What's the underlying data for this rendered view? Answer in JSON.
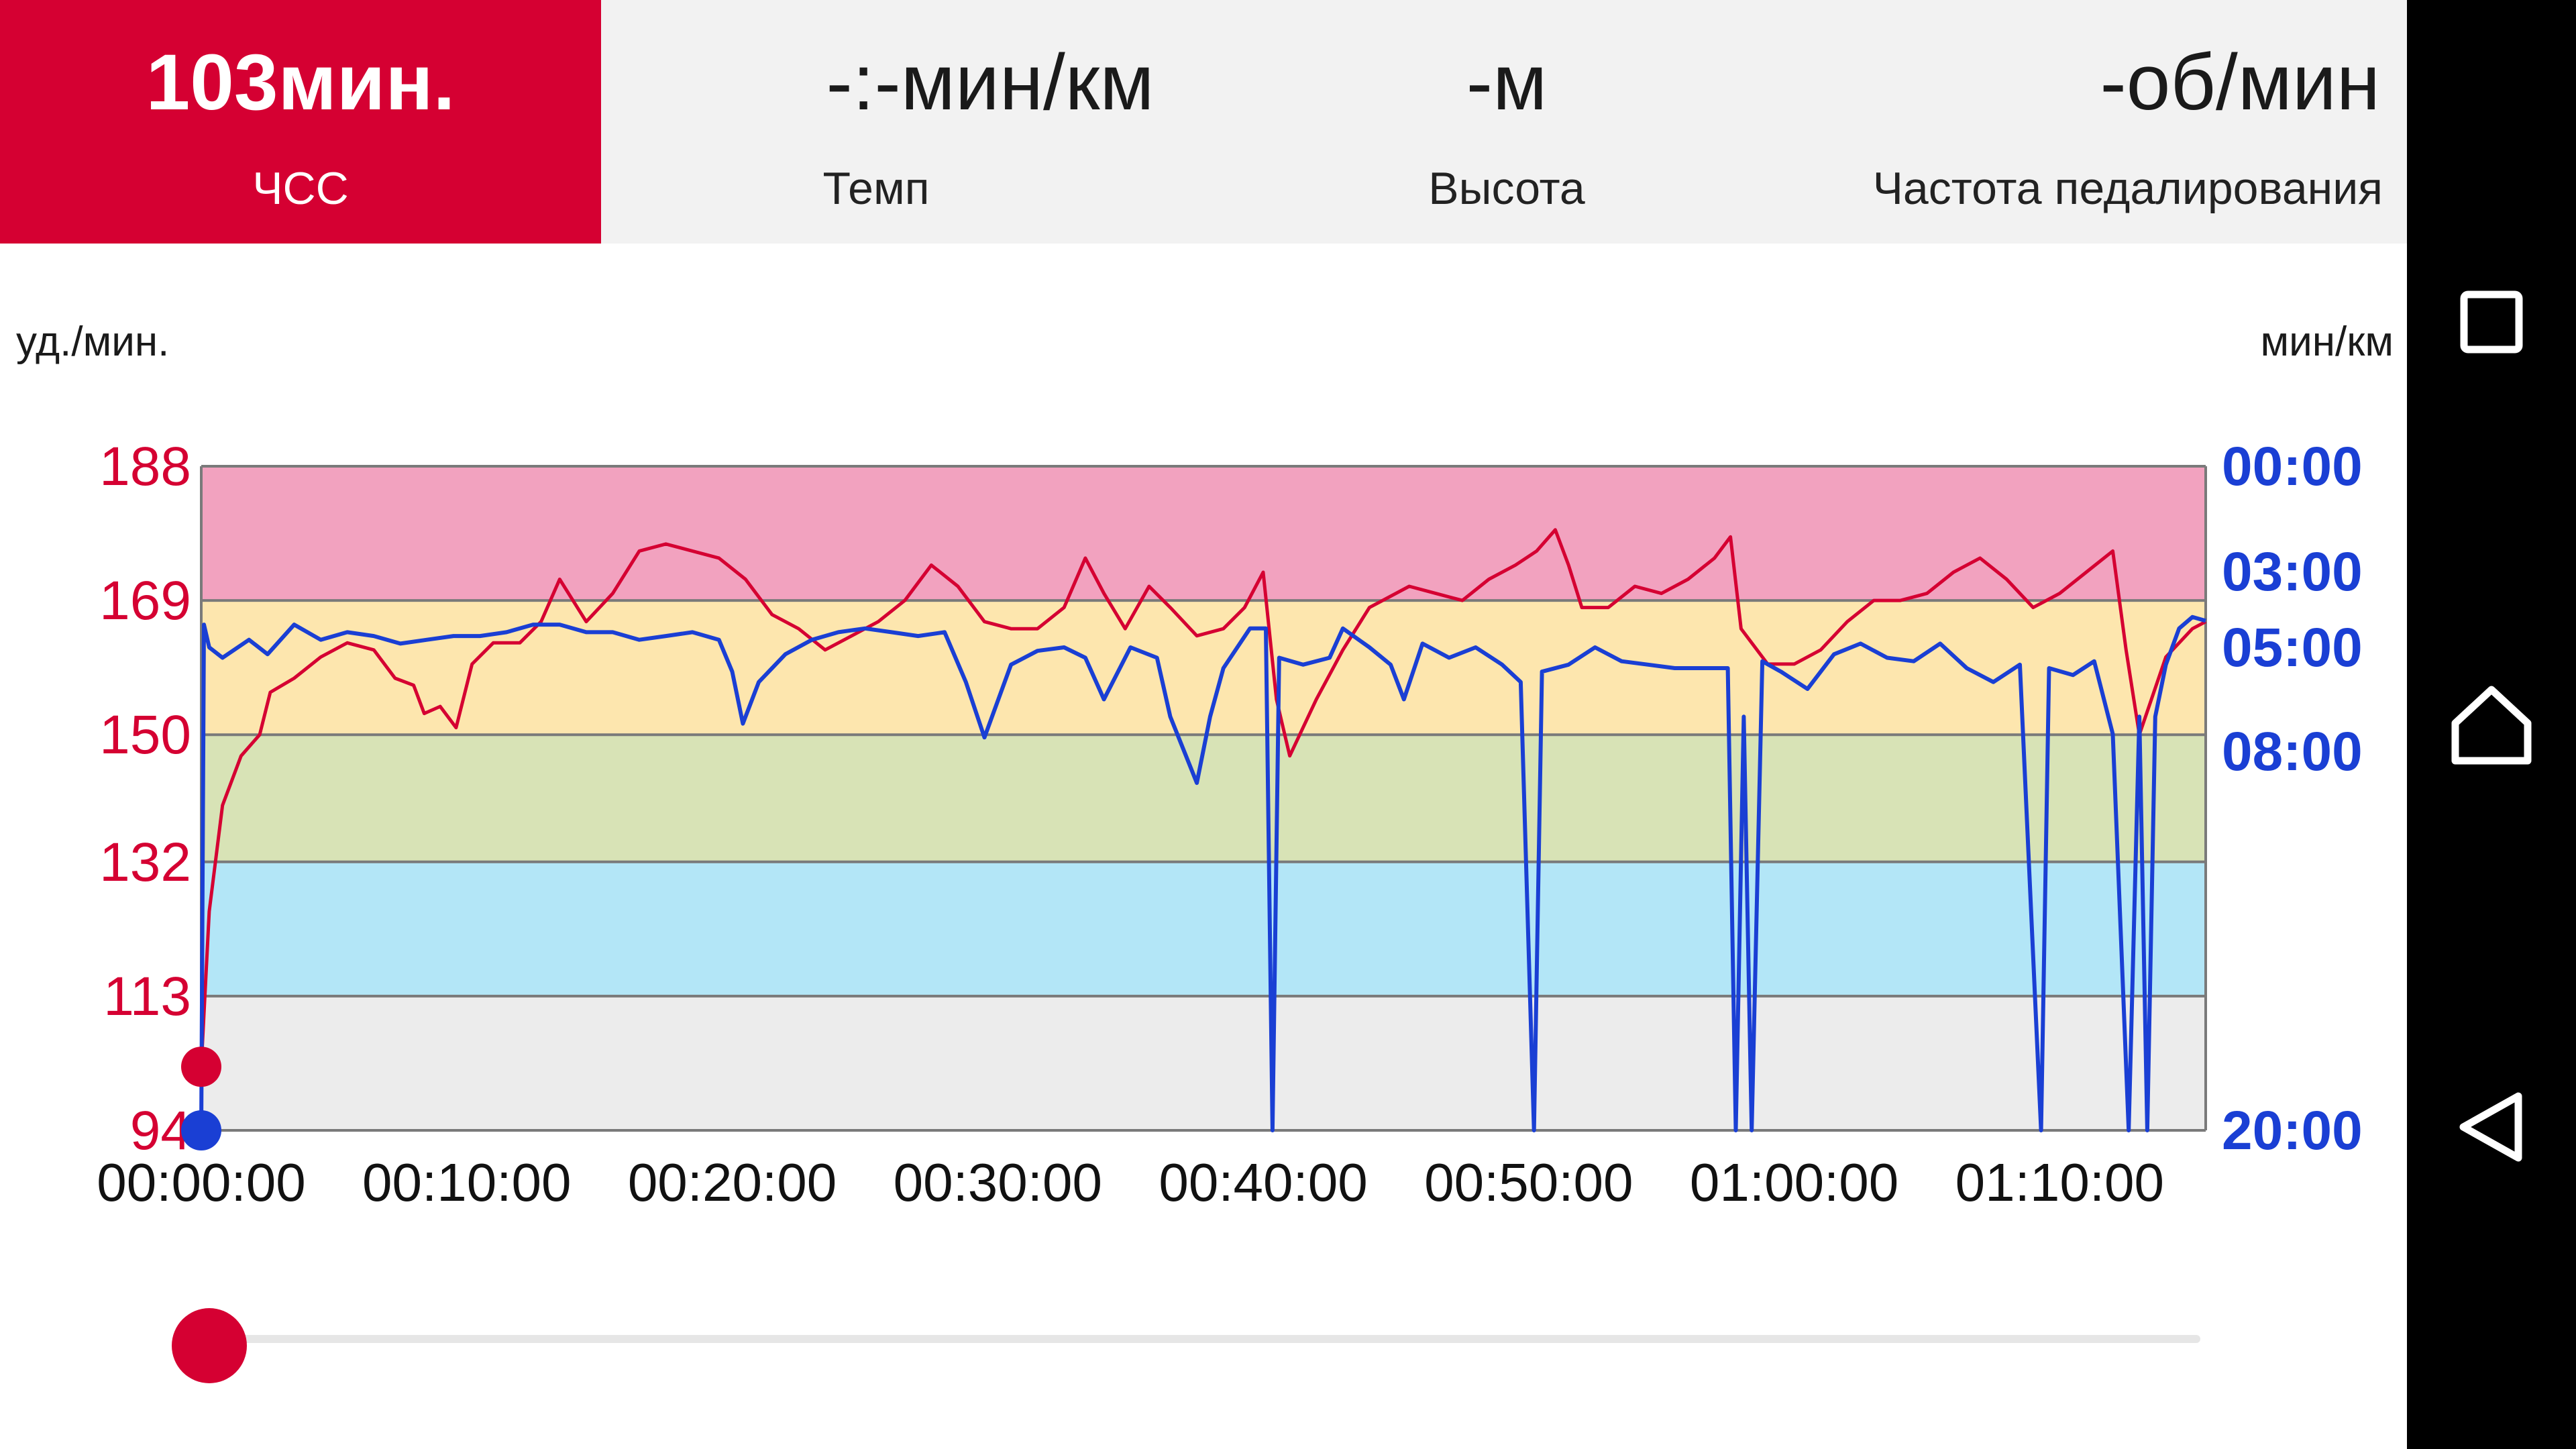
{
  "metrics": [
    {
      "id": "hr",
      "value": "103мин.",
      "label": "ЧСС",
      "active": true
    },
    {
      "id": "pace",
      "value": "-:-мин/км",
      "label": "Темп",
      "active": false
    },
    {
      "id": "altitude",
      "value": "-м",
      "label": "Высота",
      "active": false
    },
    {
      "id": "cadence",
      "value": "-об/мин",
      "label": "Частота педалирования",
      "active": false
    }
  ],
  "units": {
    "left": "уд./мин.",
    "right": "мин/км"
  },
  "colors": {
    "accent": "#d50032",
    "hr_line": "#d50032",
    "pace_line": "#1a3fd4",
    "zones": [
      "#ececec",
      "#b3e6f7",
      "#d8e3b6",
      "#fde6ae",
      "#f2a2bf"
    ]
  },
  "chart_data": {
    "type": "line",
    "x_ticks": [
      "00:00:00",
      "00:10:00",
      "00:20:00",
      "00:30:00",
      "00:40:00",
      "00:50:00",
      "01:00:00",
      "01:10:00"
    ],
    "x_range_min": [
      0,
      75.5
    ],
    "hr_axis": {
      "ticks": [
        94,
        113,
        132,
        150,
        169,
        188
      ],
      "range": [
        94,
        188
      ]
    },
    "pace_axis": {
      "ticks": [
        "00:00",
        "03:00",
        "05:00",
        "08:00",
        "20:00"
      ]
    },
    "hr_zones": [
      [
        94,
        113
      ],
      [
        113,
        132
      ],
      [
        132,
        150
      ],
      [
        150,
        169
      ],
      [
        169,
        188
      ]
    ],
    "series": [
      {
        "unit": "уд./мин.",
        "points": [
          [
            0,
            103
          ],
          [
            0.3,
            125
          ],
          [
            0.8,
            140
          ],
          [
            1.5,
            147
          ],
          [
            2.2,
            150
          ],
          [
            2.6,
            156
          ],
          [
            3.5,
            158
          ],
          [
            4.5,
            161
          ],
          [
            5.5,
            163
          ],
          [
            6.5,
            162
          ],
          [
            7.3,
            158
          ],
          [
            8,
            157
          ],
          [
            8.4,
            153
          ],
          [
            9,
            154
          ],
          [
            9.6,
            151
          ],
          [
            10.2,
            160
          ],
          [
            11,
            163
          ],
          [
            12,
            163
          ],
          [
            12.8,
            166
          ],
          [
            13.5,
            172
          ],
          [
            14.5,
            166
          ],
          [
            15.5,
            170
          ],
          [
            16.5,
            176
          ],
          [
            17.5,
            177
          ],
          [
            18.5,
            176
          ],
          [
            19.5,
            175
          ],
          [
            20.5,
            172
          ],
          [
            21.5,
            167
          ],
          [
            22.5,
            165
          ],
          [
            23.5,
            162
          ],
          [
            24.5,
            164
          ],
          [
            25.5,
            166
          ],
          [
            26.5,
            169
          ],
          [
            27.5,
            174
          ],
          [
            28.5,
            171
          ],
          [
            29.5,
            166
          ],
          [
            30.5,
            165
          ],
          [
            31.5,
            165
          ],
          [
            32.5,
            168
          ],
          [
            33.3,
            175
          ],
          [
            34,
            170
          ],
          [
            34.8,
            165
          ],
          [
            35.7,
            171
          ],
          [
            36.5,
            168
          ],
          [
            37.5,
            164
          ],
          [
            38.5,
            165
          ],
          [
            39.3,
            168
          ],
          [
            40,
            173
          ],
          [
            40.5,
            155
          ],
          [
            41,
            147
          ],
          [
            42,
            155
          ],
          [
            43,
            162
          ],
          [
            44,
            168
          ],
          [
            45.5,
            171
          ],
          [
            46.5,
            170
          ],
          [
            47.5,
            169
          ],
          [
            48.5,
            172
          ],
          [
            49.5,
            174
          ],
          [
            50.3,
            176
          ],
          [
            51,
            179
          ],
          [
            51.5,
            174
          ],
          [
            52,
            168
          ],
          [
            53,
            168
          ],
          [
            54,
            171
          ],
          [
            55,
            170
          ],
          [
            56,
            172
          ],
          [
            57,
            175
          ],
          [
            57.6,
            178
          ],
          [
            58,
            165
          ],
          [
            59,
            160
          ],
          [
            60,
            160
          ],
          [
            61,
            162
          ],
          [
            62,
            166
          ],
          [
            63,
            169
          ],
          [
            64,
            169
          ],
          [
            65,
            170
          ],
          [
            66,
            173
          ],
          [
            67,
            175
          ],
          [
            68,
            172
          ],
          [
            69,
            168
          ],
          [
            70,
            170
          ],
          [
            71,
            173
          ],
          [
            72,
            176
          ],
          [
            72.5,
            162
          ],
          [
            73,
            150
          ],
          [
            74,
            161
          ],
          [
            75,
            165
          ],
          [
            75.5,
            166
          ]
        ]
      },
      {
        "unit": "мин/км",
        "points": [
          [
            0,
            20
          ],
          [
            0.1,
            4.4
          ],
          [
            0.3,
            5
          ],
          [
            0.8,
            5.3
          ],
          [
            1.8,
            4.8
          ],
          [
            2.5,
            5.2
          ],
          [
            3.5,
            4.4
          ],
          [
            4.5,
            4.8
          ],
          [
            5.5,
            4.6
          ],
          [
            6.5,
            4.7
          ],
          [
            7.5,
            4.9
          ],
          [
            8.5,
            4.8
          ],
          [
            9.5,
            4.7
          ],
          [
            10.5,
            4.7
          ],
          [
            11.5,
            4.6
          ],
          [
            12.5,
            4.4
          ],
          [
            13.5,
            4.4
          ],
          [
            14.5,
            4.6
          ],
          [
            15.5,
            4.6
          ],
          [
            16.5,
            4.8
          ],
          [
            17.5,
            4.7
          ],
          [
            18.5,
            4.6
          ],
          [
            19.5,
            4.8
          ],
          [
            20,
            5.7
          ],
          [
            20.4,
            7.2
          ],
          [
            21,
            6
          ],
          [
            22,
            5.2
          ],
          [
            23,
            4.8
          ],
          [
            24,
            4.6
          ],
          [
            25,
            4.5
          ],
          [
            26,
            4.6
          ],
          [
            27,
            4.7
          ],
          [
            28,
            4.6
          ],
          [
            28.8,
            6
          ],
          [
            29.5,
            7.6
          ],
          [
            30.5,
            5.5
          ],
          [
            31.5,
            5.1
          ],
          [
            32.5,
            5
          ],
          [
            33.3,
            5.3
          ],
          [
            34,
            6.5
          ],
          [
            35,
            5
          ],
          [
            36,
            5.3
          ],
          [
            36.5,
            7
          ],
          [
            37.5,
            9
          ],
          [
            38,
            7
          ],
          [
            38.5,
            5.6
          ],
          [
            39.5,
            4.5
          ],
          [
            40.1,
            4.5
          ],
          [
            40.35,
            20
          ],
          [
            40.6,
            5.3
          ],
          [
            41.5,
            5.5
          ],
          [
            42.5,
            5.3
          ],
          [
            43,
            4.5
          ],
          [
            44,
            5
          ],
          [
            44.8,
            5.5
          ],
          [
            45.3,
            6.5
          ],
          [
            46,
            4.9
          ],
          [
            47,
            5.3
          ],
          [
            48,
            5
          ],
          [
            49,
            5.5
          ],
          [
            49.7,
            6
          ],
          [
            50.2,
            20
          ],
          [
            50.5,
            5.7
          ],
          [
            51.5,
            5.5
          ],
          [
            52.5,
            5
          ],
          [
            53.5,
            5.4
          ],
          [
            54.5,
            5.5
          ],
          [
            55.5,
            5.6
          ],
          [
            56.5,
            5.6
          ],
          [
            57.5,
            5.6
          ],
          [
            57.8,
            20
          ],
          [
            58.1,
            7
          ],
          [
            58.4,
            20
          ],
          [
            58.8,
            5.4
          ],
          [
            59.5,
            5.7
          ],
          [
            60.5,
            6.2
          ],
          [
            61.5,
            5.2
          ],
          [
            62.5,
            4.9
          ],
          [
            63.5,
            5.3
          ],
          [
            64.5,
            5.4
          ],
          [
            65.5,
            4.9
          ],
          [
            66.5,
            5.6
          ],
          [
            67.5,
            6
          ],
          [
            68.5,
            5.5
          ],
          [
            69.3,
            20
          ],
          [
            69.6,
            5.6
          ],
          [
            70.5,
            5.8
          ],
          [
            71.3,
            5.4
          ],
          [
            72,
            7.5
          ],
          [
            72.6,
            20
          ],
          [
            73,
            7
          ],
          [
            73.3,
            20
          ],
          [
            73.6,
            7
          ],
          [
            74,
            5.5
          ],
          [
            74.5,
            4.5
          ],
          [
            75,
            4.2
          ],
          [
            75.5,
            4.3
          ]
        ]
      }
    ],
    "cursor": {
      "time_min": 0,
      "hr": 103,
      "pace_min_km": 20
    }
  },
  "navbar": [
    "recents-button",
    "home-button",
    "back-button"
  ]
}
